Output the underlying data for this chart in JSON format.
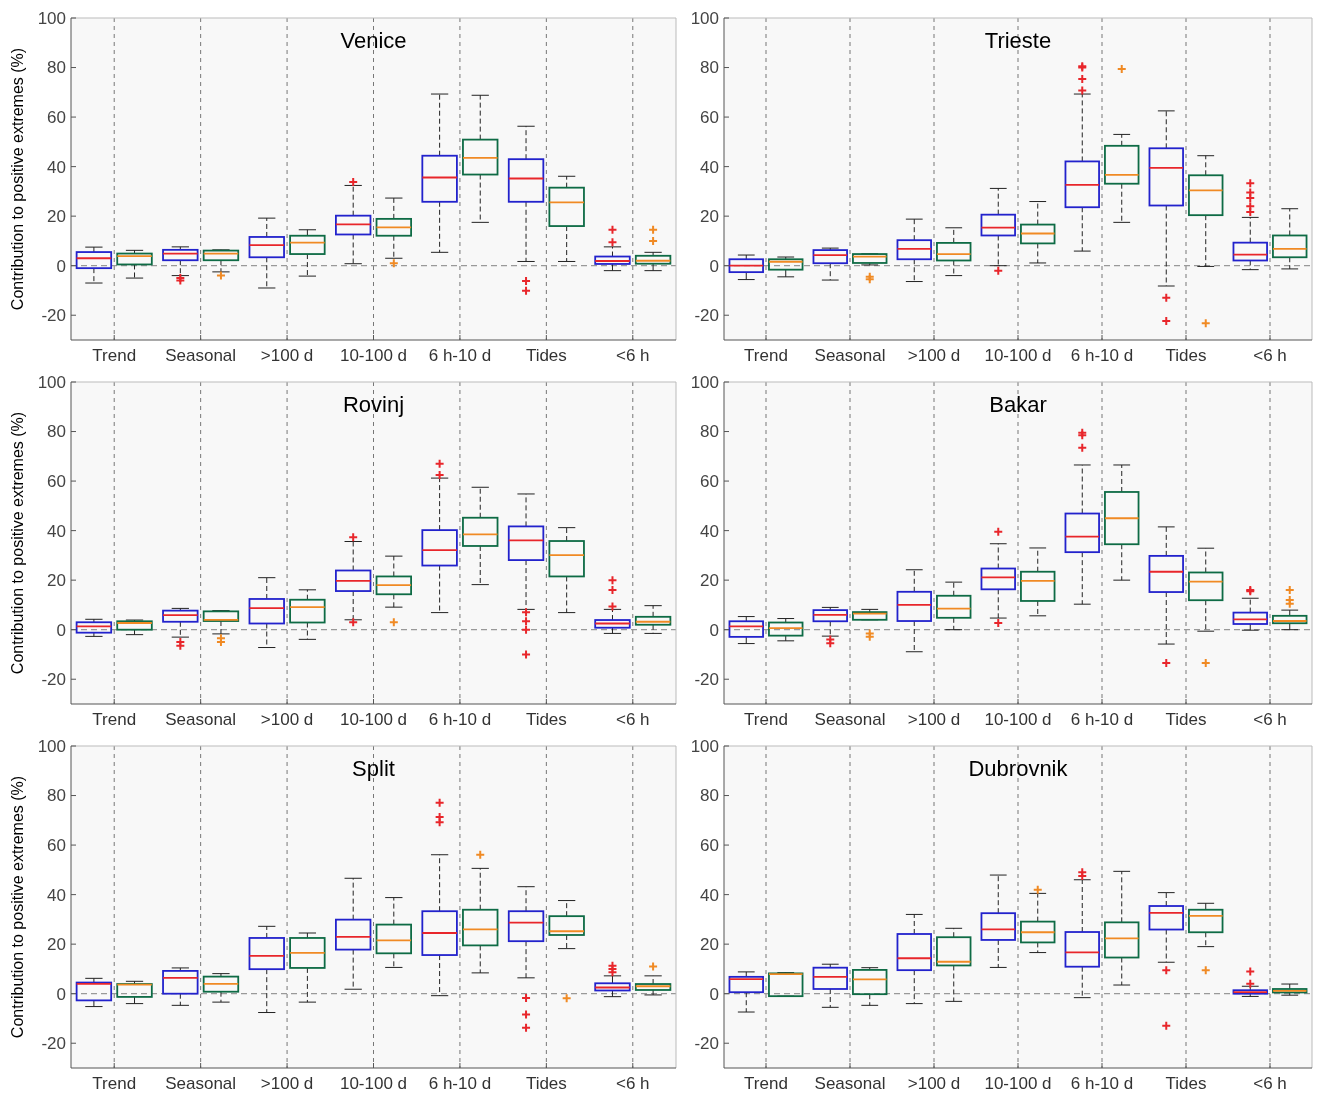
{
  "chart_data": [
    {
      "type": "box",
      "title": "Venice",
      "ylabel": "Contribution to positive extremes (%)",
      "categories": [
        "Trend",
        "Seasonal",
        ">100 d",
        "10-100 d",
        "6 h-10 d",
        "Tides",
        "<6 h"
      ],
      "ylim": [
        -30,
        100
      ],
      "yticks": [
        -20,
        0,
        20,
        40,
        60,
        80,
        100
      ],
      "grid": "x",
      "ref_lines": [
        {
          "axis": "y",
          "value": 0,
          "color": "#999999",
          "line_style": "dashed"
        }
      ],
      "series": [
        {
          "color": "#2222cc",
          "boxes": [
            {
              "low": -7,
              "q1": -1,
              "median": 3,
              "q3": 5.5,
              "high": 7.5
            },
            {
              "low": -4,
              "q1": 2.2,
              "median": 4.9,
              "q3": 6.4,
              "high": 7.6,
              "outliers": [
                -5,
                -6
              ]
            },
            {
              "low": -9,
              "q1": 3.4,
              "median": 8.3,
              "q3": 11.6,
              "high": 19.2
            },
            {
              "low": 0.8,
              "q1": 12.6,
              "median": 16.7,
              "q3": 20.2,
              "high": 32.4,
              "outliers": [
                33.8
              ]
            },
            {
              "low": 5.4,
              "q1": 25.8,
              "median": 35.6,
              "q3": 44.4,
              "high": 69.3
            },
            {
              "low": 1.7,
              "q1": 25.8,
              "median": 35.2,
              "q3": 43,
              "high": 56.3,
              "outliers": [
                -6.2,
                -10.1
              ]
            },
            {
              "low": -2,
              "q1": 0.7,
              "median": 1.9,
              "q3": 3.7,
              "high": 7.6,
              "outliers": [
                9.5,
                14.5
              ]
            }
          ]
        },
        {
          "color": "#0e6b45",
          "boxes": [
            {
              "low": -5,
              "q1": 0.5,
              "median": 3.9,
              "q3": 4.9,
              "high": 6.2
            },
            {
              "low": -2.5,
              "q1": 2.2,
              "median": 4.9,
              "q3": 6.1,
              "high": 6.4,
              "outliers": [
                -4
              ]
            },
            {
              "low": -4.2,
              "q1": 4.7,
              "median": 9.3,
              "q3": 12.1,
              "high": 14.5
            },
            {
              "low": 3,
              "q1": 12.1,
              "median": 15.5,
              "q3": 18.9,
              "high": 27.3,
              "outliers": [
                1
              ]
            },
            {
              "low": 17.5,
              "q1": 36.8,
              "median": 43.5,
              "q3": 50.9,
              "high": 68.8
            },
            {
              "low": 1.7,
              "q1": 16,
              "median": 25.6,
              "q3": 31.5,
              "high": 36.1
            },
            {
              "low": -2,
              "q1": 0.8,
              "median": 2,
              "q3": 4,
              "high": 5.4,
              "outliers": [
                10,
                14.5
              ]
            }
          ]
        }
      ]
    },
    {
      "type": "box",
      "title": "Trieste",
      "categories": [
        "Trend",
        "Seasonal",
        ">100 d",
        "10-100 d",
        "6 h-10 d",
        "Tides",
        "<6 h"
      ],
      "ylim": [
        -30,
        100
      ],
      "yticks": [
        -20,
        0,
        20,
        40,
        60,
        80,
        100
      ],
      "grid": "x",
      "ref_lines": [
        {
          "axis": "y",
          "value": 0,
          "color": "#999999",
          "line_style": "dashed"
        }
      ],
      "series": [
        {
          "color": "#2222cc",
          "boxes": [
            {
              "low": -5.6,
              "q1": -2.6,
              "median": 0,
              "q3": 2.6,
              "high": 4.3
            },
            {
              "low": -5.8,
              "q1": 1,
              "median": 4.3,
              "q3": 6.3,
              "high": 7.1
            },
            {
              "low": -6.4,
              "q1": 2.6,
              "median": 6.8,
              "q3": 10.3,
              "high": 18.8
            },
            {
              "low": 0,
              "q1": 12.2,
              "median": 15.4,
              "q3": 20.6,
              "high": 31.2,
              "outliers": [
                -2
              ]
            },
            {
              "low": 5.9,
              "q1": 23.6,
              "median": 32.6,
              "q3": 42.1,
              "high": 69.3,
              "outliers": [
                70.7,
                75.4,
                80,
                80.5
              ]
            },
            {
              "low": -8.2,
              "q1": 24.3,
              "median": 39.5,
              "q3": 47.4,
              "high": 62.5,
              "outliers": [
                -12.9,
                -22.3
              ]
            },
            {
              "low": -1.6,
              "q1": 2.1,
              "median": 4.5,
              "q3": 9.3,
              "high": 19.5,
              "outliers": [
                21.7,
                24,
                27.3,
                29.6,
                33.3
              ]
            }
          ]
        },
        {
          "color": "#0e6b45",
          "boxes": [
            {
              "low": -4.5,
              "q1": -1.6,
              "median": 1.6,
              "q3": 2.6,
              "high": 3.5
            },
            {
              "low": 0.3,
              "q1": 1.1,
              "median": 3.7,
              "q3": 4.7,
              "high": 4.8,
              "outliers": [
                -4.5,
                -5.5
              ]
            },
            {
              "low": -4,
              "q1": 2.1,
              "median": 4.7,
              "q3": 9.2,
              "high": 15.3
            },
            {
              "low": 1.1,
              "q1": 9,
              "median": 13,
              "q3": 16.6,
              "high": 25.9
            },
            {
              "low": 17.5,
              "q1": 33.1,
              "median": 36.7,
              "q3": 48.4,
              "high": 53,
              "outliers": [
                79.4
              ]
            },
            {
              "low": -0.3,
              "q1": 20.4,
              "median": 30.4,
              "q3": 36.5,
              "high": 44.4,
              "outliers": [
                -23.2
              ]
            },
            {
              "low": -1.3,
              "q1": 3.4,
              "median": 6.8,
              "q3": 12.2,
              "high": 23
            }
          ]
        }
      ]
    },
    {
      "type": "box",
      "title": "Rovinj",
      "ylabel": "Contribution to positive extremes (%)",
      "categories": [
        "Trend",
        "Seasonal",
        ">100 d",
        "10-100 d",
        "6 h-10 d",
        "Tides",
        "<6 h"
      ],
      "ylim": [
        -30,
        100
      ],
      "yticks": [
        -20,
        0,
        20,
        40,
        60,
        80,
        100
      ],
      "grid": "x",
      "ref_lines": [
        {
          "axis": "y",
          "value": 0,
          "color": "#999999",
          "line_style": "dashed"
        }
      ],
      "series": [
        {
          "color": "#2222cc",
          "boxes": [
            {
              "low": -2.7,
              "q1": -1.2,
              "median": 1.3,
              "q3": 3,
              "high": 4.2
            },
            {
              "low": -3,
              "q1": 3.2,
              "median": 5.9,
              "q3": 7.7,
              "high": 8.6,
              "outliers": [
                -5,
                -6.5
              ]
            },
            {
              "low": -7.2,
              "q1": 2.5,
              "median": 8.7,
              "q3": 12.4,
              "high": 21
            },
            {
              "low": 4,
              "q1": 15.6,
              "median": 19.7,
              "q3": 23.9,
              "high": 35.6,
              "outliers": [
                37.3,
                3
              ]
            },
            {
              "low": 6.9,
              "q1": 25.9,
              "median": 32.1,
              "q3": 40.2,
              "high": 61.2,
              "outliers": [
                62.5,
                67
              ]
            },
            {
              "low": 8.2,
              "q1": 28.1,
              "median": 36.1,
              "q3": 41.7,
              "high": 54.8,
              "outliers": [
                7,
                3.4,
                0,
                -10
              ]
            },
            {
              "low": -1.5,
              "q1": 0.8,
              "median": 2.5,
              "q3": 3.9,
              "high": 8.2,
              "outliers": [
                9.4,
                16,
                20
              ]
            }
          ]
        },
        {
          "color": "#0e6b45",
          "boxes": [
            {
              "low": -2,
              "q1": 0,
              "median": 2.7,
              "q3": 3.4,
              "high": 3.9
            },
            {
              "low": -1.7,
              "q1": 3.5,
              "median": 4,
              "q3": 7.4,
              "high": 7.7,
              "outliers": [
                -3.5,
                -5
              ]
            },
            {
              "low": -3.9,
              "q1": 2.9,
              "median": 9.1,
              "q3": 12.1,
              "high": 16.1
            },
            {
              "low": 9.1,
              "q1": 14.3,
              "median": 18,
              "q3": 21.5,
              "high": 29.7,
              "outliers": [
                3
              ]
            },
            {
              "low": 18.2,
              "q1": 33.8,
              "median": 38.5,
              "q3": 45.2,
              "high": 57.5
            },
            {
              "low": 6.9,
              "q1": 21.5,
              "median": 30.1,
              "q3": 35.8,
              "high": 41.2
            },
            {
              "low": -1.5,
              "q1": 2,
              "median": 3.2,
              "q3": 5.2,
              "high": 9.7
            }
          ]
        }
      ]
    },
    {
      "type": "box",
      "title": "Bakar",
      "categories": [
        "Trend",
        "Seasonal",
        ">100 d",
        "10-100 d",
        "6 h-10 d",
        "Tides",
        "<6 h"
      ],
      "ylim": [
        -30,
        100
      ],
      "yticks": [
        -20,
        0,
        20,
        40,
        60,
        80,
        100
      ],
      "grid": "x",
      "ref_lines": [
        {
          "axis": "y",
          "value": 0,
          "color": "#999999",
          "line_style": "dashed"
        }
      ],
      "series": [
        {
          "color": "#2222cc",
          "boxes": [
            {
              "low": -5.6,
              "q1": -2.9,
              "median": 1.3,
              "q3": 3.4,
              "high": 5.3
            },
            {
              "low": -2.6,
              "q1": 3.4,
              "median": 6,
              "q3": 7.9,
              "high": 9,
              "outliers": [
                -4,
                -5.5
              ]
            },
            {
              "low": -8.9,
              "q1": 3.5,
              "median": 10,
              "q3": 15.3,
              "high": 24.2
            },
            {
              "low": 4.7,
              "q1": 16.3,
              "median": 21.1,
              "q3": 24.7,
              "high": 34.7,
              "outliers": [
                39.5,
                2.7
              ]
            },
            {
              "low": 10.3,
              "q1": 31.3,
              "median": 37.6,
              "q3": 46.9,
              "high": 66.5,
              "outliers": [
                73.5,
                78.5,
                79.5
              ]
            },
            {
              "low": -5.8,
              "q1": 15.2,
              "median": 23.4,
              "q3": 29.8,
              "high": 41.5,
              "outliers": [
                -13.4
              ]
            },
            {
              "low": -0.2,
              "q1": 2.3,
              "median": 4.2,
              "q3": 6.9,
              "high": 12.7,
              "outliers": [
                15.5,
                16
              ]
            }
          ]
        },
        {
          "color": "#0e6b45",
          "boxes": [
            {
              "low": -4.5,
              "q1": -2.4,
              "median": 0.6,
              "q3": 2.9,
              "high": 4.5
            },
            {
              "low": 4,
              "q1": 4,
              "median": 6.5,
              "q3": 7.1,
              "high": 8.2,
              "outliers": [
                -1.5,
                -2.8
              ]
            },
            {
              "low": 0,
              "q1": 4.8,
              "median": 8.5,
              "q3": 13.7,
              "high": 19.2
            },
            {
              "low": 5.6,
              "q1": 11.6,
              "median": 19.7,
              "q3": 23.4,
              "high": 33
            },
            {
              "low": 20,
              "q1": 34.5,
              "median": 45,
              "q3": 55.6,
              "high": 66.5
            },
            {
              "low": -0.6,
              "q1": 11.9,
              "median": 19.4,
              "q3": 23.1,
              "high": 32.9,
              "outliers": [
                -13.4
              ]
            },
            {
              "low": 0,
              "q1": 2.6,
              "median": 3.5,
              "q3": 5.6,
              "high": 7.9,
              "outliers": [
                10.5,
                12,
                16
              ]
            }
          ]
        }
      ]
    },
    {
      "type": "box",
      "title": "Split",
      "ylabel": "Contribution to positive extremes (%)",
      "categories": [
        "Trend",
        "Seasonal",
        ">100 d",
        "10-100 d",
        "6 h-10 d",
        "Tides",
        "<6 h"
      ],
      "ylim": [
        -30,
        100
      ],
      "yticks": [
        -20,
        0,
        20,
        40,
        60,
        80,
        100
      ],
      "grid": "x",
      "ref_lines": [
        {
          "axis": "y",
          "value": 0,
          "color": "#999999",
          "line_style": "dashed"
        }
      ],
      "series": [
        {
          "color": "#2222cc",
          "boxes": [
            {
              "low": -5.2,
              "q1": -2.7,
              "median": 4,
              "q3": 4.5,
              "high": 6.2
            },
            {
              "low": -4.7,
              "q1": 0,
              "median": 6.4,
              "q3": 9.2,
              "high": 10.4
            },
            {
              "low": -7.6,
              "q1": 9.9,
              "median": 15.3,
              "q3": 22.5,
              "high": 27.2
            },
            {
              "low": 1.8,
              "q1": 17.8,
              "median": 22.9,
              "q3": 29.9,
              "high": 46.6
            },
            {
              "low": -0.8,
              "q1": 15.6,
              "median": 24.5,
              "q3": 33.3,
              "high": 56.1,
              "outliers": [
                69.2,
                71.3,
                77.1
              ]
            },
            {
              "low": 6.4,
              "q1": 21.2,
              "median": 28.7,
              "q3": 33.3,
              "high": 43.2,
              "outliers": [
                -1.7,
                -8.4,
                -13.8
              ]
            },
            {
              "low": -1.2,
              "q1": 1.3,
              "median": 2.5,
              "q3": 4.2,
              "high": 7.2,
              "outliers": [
                8.7,
                10,
                11.3
              ]
            }
          ]
        },
        {
          "color": "#0e6b45",
          "boxes": [
            {
              "low": -4,
              "q1": -1.3,
              "median": 3.7,
              "q3": 3.9,
              "high": 5
            },
            {
              "low": -3.4,
              "q1": 0.8,
              "median": 4,
              "q3": 6.9,
              "high": 8.1
            },
            {
              "low": -3.4,
              "q1": 10.4,
              "median": 16.5,
              "q3": 22.5,
              "high": 24.5
            },
            {
              "low": 10.6,
              "q1": 16.3,
              "median": 21.5,
              "q3": 27.9,
              "high": 38.8
            },
            {
              "low": 8.4,
              "q1": 19.5,
              "median": 26,
              "q3": 33.9,
              "high": 50.6,
              "outliers": [
                56.1
              ]
            },
            {
              "low": 18.2,
              "q1": 23.7,
              "median": 25.2,
              "q3": 31.3,
              "high": 37.6,
              "outliers": [
                -1.8
              ]
            },
            {
              "low": -0.5,
              "q1": 1.5,
              "median": 3,
              "q3": 3.9,
              "high": 7.2,
              "outliers": [
                11
              ]
            }
          ]
        }
      ]
    },
    {
      "type": "box",
      "title": "Dubrovnik",
      "categories": [
        "Trend",
        "Seasonal",
        ">100 d",
        "10-100 d",
        "6 h-10 d",
        "Tides",
        "<6 h"
      ],
      "ylim": [
        -30,
        100
      ],
      "yticks": [
        -20,
        0,
        20,
        40,
        60,
        80,
        100
      ],
      "grid": "x",
      "ref_lines": [
        {
          "axis": "y",
          "value": 0,
          "color": "#999999",
          "line_style": "dashed"
        }
      ],
      "series": [
        {
          "color": "#2222cc",
          "boxes": [
            {
              "low": -7.4,
              "q1": 0.6,
              "median": 5.9,
              "q3": 6.8,
              "high": 8.8
            },
            {
              "low": -5.5,
              "q1": 1.9,
              "median": 6.8,
              "q3": 10.5,
              "high": 11.9
            },
            {
              "low": -4,
              "q1": 9.5,
              "median": 14.3,
              "q3": 24.1,
              "high": 32
            },
            {
              "low": 10.6,
              "q1": 21.7,
              "median": 26,
              "q3": 32.5,
              "high": 47.9
            },
            {
              "low": -1.6,
              "q1": 10.9,
              "median": 16.7,
              "q3": 24.9,
              "high": 46,
              "outliers": [
                47.5,
                49
              ]
            },
            {
              "low": 12.7,
              "q1": 25.9,
              "median": 32.6,
              "q3": 35.4,
              "high": 40.8,
              "outliers": [
                9.5,
                -12.9
              ]
            },
            {
              "low": -1.1,
              "q1": 0,
              "median": 0.6,
              "q3": 1.4,
              "high": 3,
              "outliers": [
                4,
                9
              ]
            }
          ]
        },
        {
          "color": "#0e6b45",
          "boxes": [
            {
              "low": -1,
              "q1": -1,
              "median": 7.9,
              "q3": 8.2,
              "high": 8.5
            },
            {
              "low": -4.7,
              "q1": -0.2,
              "median": 5.8,
              "q3": 9.6,
              "high": 10.5
            },
            {
              "low": -3.1,
              "q1": 11.4,
              "median": 12.9,
              "q3": 22.8,
              "high": 26.4
            },
            {
              "low": 16.6,
              "q1": 20.7,
              "median": 24.8,
              "q3": 29.1,
              "high": 40.5,
              "outliers": [
                42
              ]
            },
            {
              "low": 3.5,
              "q1": 14.6,
              "median": 22.3,
              "q3": 28.8,
              "high": 49.4
            },
            {
              "low": 19,
              "q1": 24.8,
              "median": 31.4,
              "q3": 33.9,
              "high": 36.5,
              "outliers": [
                9.5
              ]
            },
            {
              "low": -0.6,
              "q1": 0.5,
              "median": 1.1,
              "q3": 1.9,
              "high": 3.9
            }
          ]
        }
      ]
    }
  ]
}
